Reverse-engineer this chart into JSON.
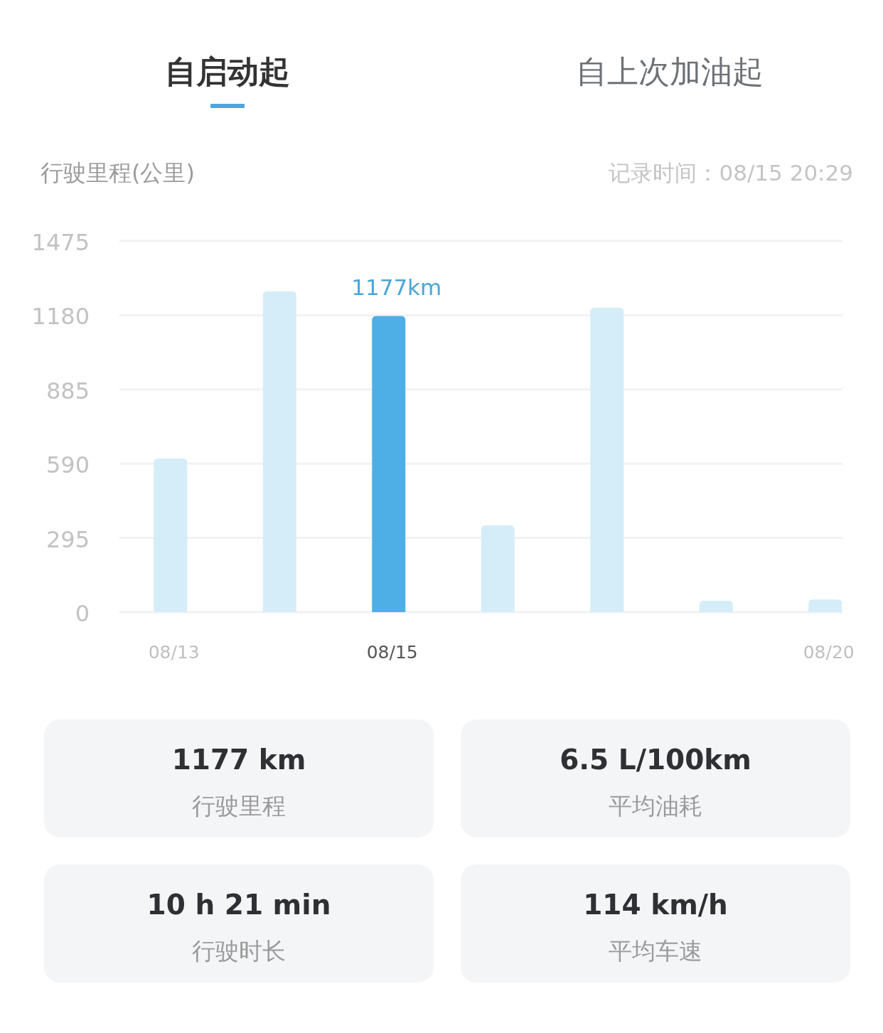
{
  "chart_data": [
    {
      "type": "bar",
      "annotations": [
        "自启动起",
        "自上次加油起",
        "记录时间：08/15 20:29"
      ],
      "ylabel": "行驶里程(公里)",
      "categories": [
        "08/13",
        null,
        "08/15",
        null,
        null,
        null,
        "08/20"
      ],
      "values": [
        610,
        1275,
        1177,
        345,
        1210,
        45,
        50
      ],
      "colors": [
        "#d4edf9",
        "#d4edf9",
        "#4eaee6",
        "#d4edf9",
        "#d4edf9",
        "#d4edf9",
        "#d4edf9"
      ],
      "value_labels": [
        null,
        null,
        "1177km",
        null,
        null,
        null,
        null
      ],
      "ylim": [
        0,
        1475
      ],
      "yticks": [
        0,
        295,
        590,
        885,
        1180,
        1475
      ],
      "grid": "y"
    },
    {
      "type": "other",
      "annotations": [
        "1177 km",
        "行驶里程",
        "6.5 L/100km",
        "平均油耗",
        "10 h 21 min",
        "行驶时长",
        "114 km/h",
        "平均车速"
      ]
    }
  ]
}
